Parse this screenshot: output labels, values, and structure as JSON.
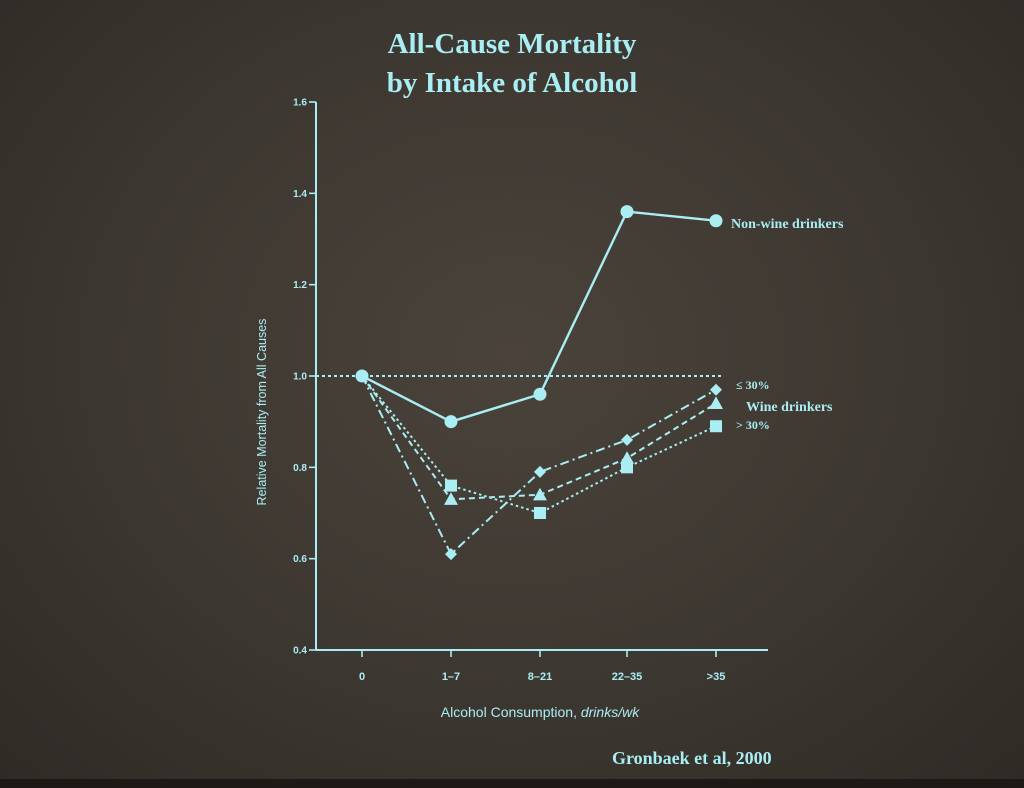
{
  "colors": {
    "background": "#3d3731",
    "foreground": "#a9eef2"
  },
  "chart_data": {
    "type": "line",
    "title": "All-Cause Mortality",
    "subtitle": "by Intake of Alcohol",
    "xlabel_main": "Alcohol Consumption, ",
    "xlabel_unit": "drinks/wk",
    "ylabel": "Relative Mortality from All Causes",
    "categories": [
      "0",
      "1–7",
      "8–21",
      "22–35",
      ">35"
    ],
    "ylim": [
      0.4,
      1.6
    ],
    "yticks": [
      "0.4",
      "0.6",
      "0.8",
      "1.0",
      "1.2",
      "1.4",
      "1.6"
    ],
    "yticks_values": [
      0.4,
      0.6,
      0.8,
      1.0,
      1.2,
      1.4,
      1.6
    ],
    "reference_line": 1.0,
    "series": [
      {
        "name": "Non-wine drinkers",
        "marker": "circle",
        "dash": "solid",
        "values": [
          1.0,
          0.9,
          0.96,
          1.36,
          1.34
        ]
      },
      {
        "name": "≤ 30%",
        "marker": "diamond",
        "dash": "dashdot",
        "values": [
          1.0,
          0.61,
          0.79,
          0.86,
          0.97
        ]
      },
      {
        "name": "",
        "marker": "triangle",
        "dash": "dashed",
        "values": [
          1.0,
          0.73,
          0.74,
          0.82,
          0.94
        ]
      },
      {
        "name": "> 30%",
        "marker": "square",
        "dash": "dotted",
        "values": [
          1.0,
          0.76,
          0.7,
          0.8,
          0.89
        ]
      }
    ],
    "group_label": "Wine drinkers"
  },
  "citation": "Gronbaek et al, 2000"
}
